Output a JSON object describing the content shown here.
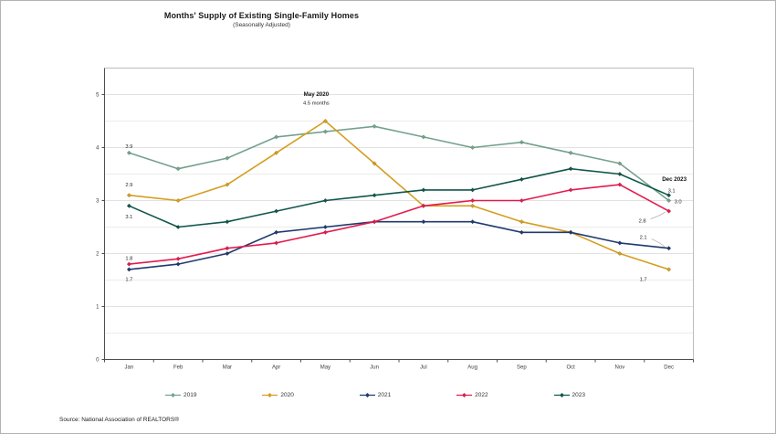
{
  "title": "Months' Supply of Existing Single-Family Homes",
  "subtitle": "(Seasonally Adjusted)",
  "source": "Source: National Association of REALTORS®",
  "chart_data": {
    "type": "line",
    "categories": [
      "Jan",
      "Feb",
      "Mar",
      "Apr",
      "May",
      "Jun",
      "Jul",
      "Aug",
      "Sep",
      "Oct",
      "Nov",
      "Dec"
    ],
    "series": [
      {
        "name": "2019",
        "color": "#74a28d",
        "values": [
          3.9,
          3.6,
          3.8,
          4.2,
          4.3,
          4.4,
          4.2,
          4.0,
          4.1,
          3.9,
          3.7,
          3.0
        ]
      },
      {
        "name": "2020",
        "color": "#d49e1d",
        "values": [
          3.1,
          3.0,
          3.3,
          3.9,
          4.5,
          3.7,
          2.9,
          2.9,
          2.6,
          2.4,
          2.0,
          1.7
        ]
      },
      {
        "name": "2021",
        "color": "#1f3a6d",
        "values": [
          1.7,
          1.8,
          2.0,
          2.4,
          2.5,
          2.6,
          2.6,
          2.6,
          2.4,
          2.4,
          2.2,
          2.1
        ]
      },
      {
        "name": "2022",
        "color": "#e41a4e",
        "values": [
          1.8,
          1.9,
          2.1,
          2.2,
          2.4,
          2.6,
          2.9,
          3.0,
          3.0,
          3.2,
          3.3,
          2.8
        ]
      },
      {
        "name": "2023",
        "color": "#11564a",
        "values": [
          2.9,
          2.5,
          2.6,
          2.8,
          3.0,
          3.1,
          3.2,
          3.2,
          3.4,
          3.6,
          3.5,
          3.1
        ]
      }
    ],
    "ylim": [
      0,
      5.5
    ],
    "yticks": [
      0,
      1,
      2,
      3,
      4,
      5
    ],
    "grid": "horizontal lines every 0.5",
    "legend_position": "bottom",
    "annotations": [
      {
        "title": "May 2020",
        "sub": "4.5 months",
        "month": 4,
        "at": 4.97,
        "dx": -10
      },
      {
        "title": "Dec 2023",
        "sub": "",
        "month": 11,
        "at": 3.37,
        "dx": 6
      }
    ],
    "point_labels": [
      {
        "text": "3.9",
        "month": 0,
        "at": 4.03,
        "dx": 0
      },
      {
        "text": "2.9",
        "month": 0,
        "at": 3.3,
        "dx": 0
      },
      {
        "text": "3.1",
        "month": 0,
        "at": 2.7,
        "dx": 0
      },
      {
        "text": "1.8",
        "month": 0,
        "at": 1.91,
        "dx": 0
      },
      {
        "text": "1.7",
        "month": 0,
        "at": 1.52,
        "dx": 0
      },
      {
        "text": "3.1",
        "month": 11,
        "at": 3.19,
        "dx": 3
      },
      {
        "text": "3.0",
        "month": 11,
        "at": 2.98,
        "dx": 10
      },
      {
        "text": "2.8",
        "month": 11,
        "at": 2.62,
        "dx": -29,
        "leader": true
      },
      {
        "text": "2.1",
        "month": 11,
        "at": 2.31,
        "dx": -28,
        "leader": true
      },
      {
        "text": "1.7",
        "month": 11,
        "at": 1.52,
        "dx": -28
      }
    ]
  }
}
